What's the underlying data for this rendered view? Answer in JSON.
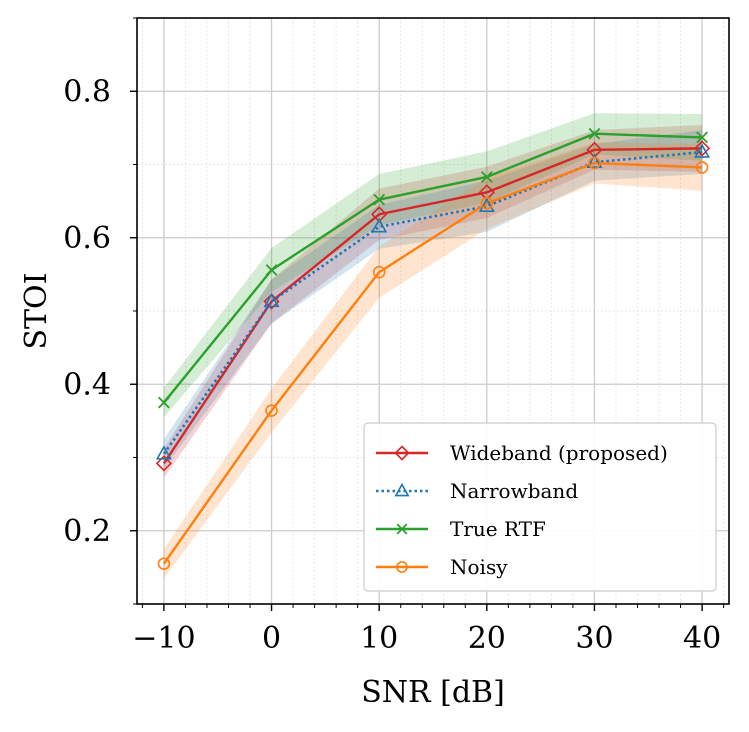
{
  "chart_data": {
    "type": "line",
    "title": "",
    "xlabel": "SNR [dB]",
    "ylabel": "STOI",
    "xlim": [
      -12.5,
      42.5
    ],
    "ylim": [
      0.1,
      0.9
    ],
    "x": [
      -10,
      0,
      10,
      20,
      30,
      40
    ],
    "x_ticks": [
      -10,
      0,
      10,
      20,
      30,
      40
    ],
    "x_tick_labels": [
      "−10",
      "0",
      "10",
      "20",
      "30",
      "40"
    ],
    "y_ticks": [
      0.2,
      0.4,
      0.6,
      0.8
    ],
    "y_tick_labels": [
      "0.2",
      "0.4",
      "0.6",
      "0.8"
    ],
    "grid": true,
    "legend_position": "bottom-right",
    "series": [
      {
        "name": "Wideband (proposed)",
        "color": "#d62728",
        "marker": "diamond",
        "linestyle": "solid",
        "values": [
          0.292,
          0.513,
          0.632,
          0.662,
          0.72,
          0.722
        ],
        "lower": [
          0.272,
          0.483,
          0.597,
          0.627,
          0.693,
          0.69
        ],
        "upper": [
          0.312,
          0.543,
          0.667,
          0.697,
          0.747,
          0.754
        ]
      },
      {
        "name": "Narrowband",
        "color": "#1f77b4",
        "marker": "triangle",
        "linestyle": "dotted",
        "values": [
          0.305,
          0.513,
          0.615,
          0.643,
          0.703,
          0.717
        ],
        "lower": [
          0.285,
          0.483,
          0.585,
          0.608,
          0.678,
          0.687
        ],
        "upper": [
          0.325,
          0.543,
          0.645,
          0.678,
          0.728,
          0.747
        ]
      },
      {
        "name": "True RTF",
        "color": "#2ca02c",
        "marker": "x",
        "linestyle": "solid",
        "values": [
          0.375,
          0.556,
          0.652,
          0.683,
          0.742,
          0.737
        ],
        "lower": [
          0.355,
          0.526,
          0.617,
          0.648,
          0.714,
          0.705
        ],
        "upper": [
          0.395,
          0.586,
          0.687,
          0.718,
          0.77,
          0.769
        ]
      },
      {
        "name": "Noisy",
        "color": "#ff7f0e",
        "marker": "circle",
        "linestyle": "solid",
        "values": [
          0.155,
          0.364,
          0.553,
          0.647,
          0.702,
          0.696
        ],
        "lower": [
          0.135,
          0.334,
          0.518,
          0.612,
          0.674,
          0.664
        ],
        "upper": [
          0.175,
          0.394,
          0.588,
          0.682,
          0.73,
          0.728
        ]
      }
    ]
  }
}
